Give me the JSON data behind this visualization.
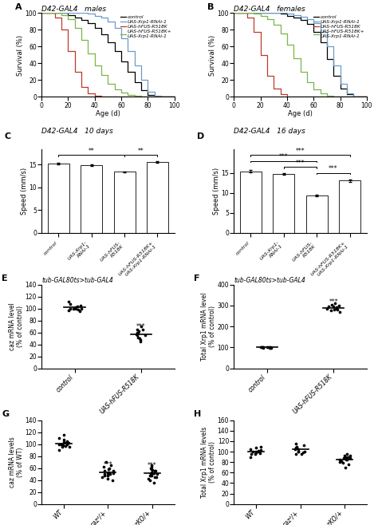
{
  "panel_A_title": "D42-GAL4   males",
  "panel_B_title": "D42-GAL4   females",
  "panel_C_title": "D42-GAL4   10 days",
  "panel_D_title": "D42-GAL4   16 days",
  "panel_E_title": "tub-GAL80ts>tub-GAL4",
  "panel_F_title": "tub-GAL80ts>tub-GAL4",
  "survival_colors": [
    "#000000",
    "#6b9dc8",
    "#c0392b",
    "#7ab648"
  ],
  "survival_A_ages": [
    0,
    5,
    10,
    15,
    20,
    25,
    30,
    35,
    40,
    45,
    50,
    55,
    60,
    65,
    70,
    75,
    80,
    85,
    90,
    95,
    100
  ],
  "survival_A_control": [
    100,
    100,
    100,
    100,
    98,
    95,
    92,
    88,
    82,
    75,
    65,
    55,
    42,
    30,
    18,
    8,
    2,
    0,
    0,
    0,
    0
  ],
  "survival_A_xrp1": [
    100,
    100,
    100,
    100,
    100,
    100,
    100,
    99,
    97,
    95,
    90,
    82,
    70,
    55,
    38,
    20,
    6,
    1,
    0,
    0,
    0
  ],
  "survival_A_hfus": [
    100,
    100,
    95,
    80,
    55,
    30,
    12,
    4,
    1,
    0,
    0,
    0,
    0,
    0,
    0,
    0,
    0,
    0,
    0,
    0,
    0
  ],
  "survival_A_hfus_xrp1": [
    100,
    100,
    100,
    98,
    93,
    82,
    68,
    52,
    38,
    26,
    16,
    9,
    5,
    2,
    1,
    0,
    0,
    0,
    0,
    0,
    0
  ],
  "survival_B_ages": [
    0,
    5,
    10,
    15,
    20,
    25,
    30,
    35,
    40,
    45,
    50,
    55,
    60,
    65,
    70,
    75,
    80,
    85,
    90,
    95,
    100
  ],
  "survival_B_control": [
    100,
    100,
    100,
    100,
    100,
    100,
    100,
    99,
    97,
    95,
    92,
    87,
    78,
    65,
    45,
    25,
    10,
    3,
    0,
    0,
    0
  ],
  "survival_B_xrp1": [
    100,
    100,
    100,
    100,
    100,
    100,
    100,
    100,
    99,
    98,
    96,
    93,
    88,
    78,
    60,
    38,
    16,
    4,
    0,
    0,
    0
  ],
  "survival_B_hfus": [
    100,
    100,
    95,
    78,
    50,
    25,
    10,
    3,
    0,
    0,
    0,
    0,
    0,
    0,
    0,
    0,
    0,
    0,
    0,
    0,
    0
  ],
  "survival_B_hfus_xrp1": [
    100,
    100,
    100,
    99,
    97,
    93,
    86,
    76,
    62,
    46,
    30,
    18,
    9,
    4,
    1,
    0,
    0,
    0,
    0,
    0,
    0
  ],
  "bar_C_values": [
    15.3,
    14.95,
    13.4,
    15.6
  ],
  "bar_C_errors": [
    0.15,
    0.15,
    0.12,
    0.2
  ],
  "bar_D_values": [
    15.4,
    14.7,
    9.3,
    13.1
  ],
  "bar_D_errors": [
    0.35,
    0.25,
    0.25,
    0.3
  ],
  "panel_E_control_dots": [
    100,
    105,
    98,
    102,
    100,
    108,
    112,
    95,
    100,
    103,
    97,
    100
  ],
  "panel_E_hfus_dots": [
    55,
    60,
    65,
    55,
    62,
    70,
    45,
    52,
    65,
    57,
    60,
    50,
    48
  ],
  "panel_E_ylabel": "caz mRNA level\n(% of control)",
  "panel_E_yticks": [
    0,
    20,
    40,
    60,
    80,
    100,
    120,
    140
  ],
  "panel_F_control_dots": [
    98,
    100,
    102,
    98,
    100,
    102,
    97,
    100,
    103,
    100,
    98
  ],
  "panel_F_hfus_dots": [
    270,
    285,
    295,
    280,
    310,
    290,
    275,
    300,
    285,
    280,
    295,
    305
  ],
  "panel_F_ylabel": "Total Xrp1 mRNA level\n(% of control)",
  "panel_F_yticks": [
    0,
    100,
    200,
    300,
    400
  ],
  "panel_G_WT_dots": [
    100,
    105,
    98,
    102,
    95,
    108,
    115,
    90,
    100,
    103,
    97,
    100,
    95,
    110,
    100,
    102
  ],
  "panel_G_caz2_dots": [
    50,
    48,
    52,
    45,
    60,
    55,
    47,
    53,
    40,
    62,
    58,
    65,
    50,
    42,
    55,
    48,
    70,
    52
  ],
  "panel_G_cazKO_dots": [
    50,
    45,
    55,
    48,
    52,
    40,
    62,
    47,
    35,
    60,
    53,
    45,
    58,
    50,
    42,
    55,
    48,
    65,
    52,
    57
  ],
  "panel_G_ylabel": "caz mRNA levels\n(% of WT)",
  "panel_G_yticks": [
    0,
    20,
    40,
    60,
    80,
    100,
    120,
    140
  ],
  "panel_H_WT_dots": [
    100,
    105,
    98,
    102,
    95,
    108,
    90,
    100,
    103,
    97,
    100,
    95,
    110
  ],
  "panel_H_caz2_dots": [
    100,
    108,
    95,
    105,
    115,
    100,
    110,
    98,
    112,
    105,
    100,
    95,
    108
  ],
  "panel_H_cazKO_dots": [
    85,
    90,
    80,
    92,
    88,
    75,
    95,
    85,
    70,
    88,
    92,
    78,
    82,
    90,
    85
  ],
  "panel_H_ylabel": "Total Xrp1 mRNA levels\n(% of control)",
  "panel_H_yticks": [
    0,
    20,
    40,
    60,
    80,
    100,
    120,
    140,
    160
  ],
  "dot_color": "#000000",
  "bar_color": "#ffffff",
  "bar_edge_color": "#000000"
}
